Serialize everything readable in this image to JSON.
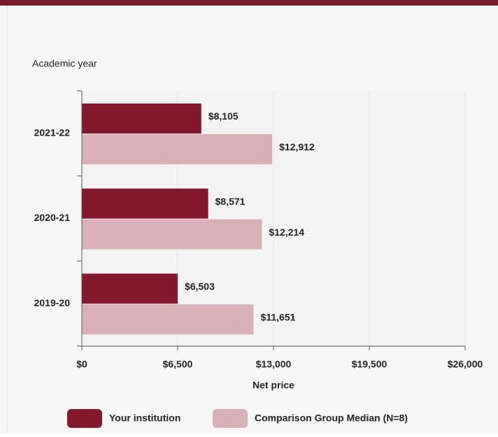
{
  "chart_data": {
    "type": "bar",
    "orientation": "horizontal",
    "y_axis_title": "Academic year",
    "x_axis_title": "Net price",
    "categories": [
      "2021-22",
      "2020-21",
      "2019-20"
    ],
    "series": [
      {
        "name": "Your institution",
        "color": "#84182c",
        "values": [
          8105,
          8571,
          6503
        ],
        "value_labels": [
          "$8,105",
          "$8,571",
          "$6,503"
        ]
      },
      {
        "name": "Comparison Group Median (N=8)",
        "color": "#d8b0b5",
        "values": [
          12912,
          12214,
          11651
        ],
        "value_labels": [
          "$12,912",
          "$12,214",
          "$11,651"
        ]
      }
    ],
    "xlim": [
      0,
      26000
    ],
    "xticks": [
      {
        "value": 0,
        "label": "$0"
      },
      {
        "value": 6500,
        "label": "$6,500"
      },
      {
        "value": 13000,
        "label": "$13,000"
      },
      {
        "value": 19500,
        "label": "$19,500"
      },
      {
        "value": 26000,
        "label": "$26,000"
      }
    ],
    "grid": true,
    "legend": "bottom"
  }
}
